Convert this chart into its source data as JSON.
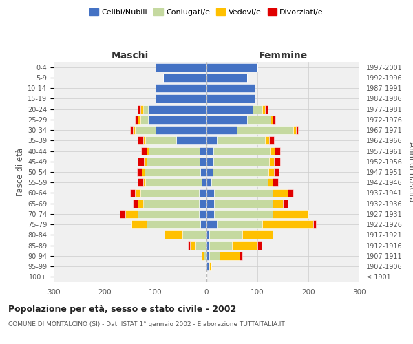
{
  "age_groups": [
    "100+",
    "95-99",
    "90-94",
    "85-89",
    "80-84",
    "75-79",
    "70-74",
    "65-69",
    "60-64",
    "55-59",
    "50-54",
    "45-49",
    "40-44",
    "35-39",
    "30-34",
    "25-29",
    "20-24",
    "15-19",
    "10-14",
    "5-9",
    "0-4"
  ],
  "birth_years": [
    "≤ 1901",
    "1902-1906",
    "1907-1911",
    "1912-1916",
    "1917-1921",
    "1922-1926",
    "1927-1931",
    "1932-1936",
    "1937-1941",
    "1942-1946",
    "1947-1951",
    "1952-1956",
    "1957-1961",
    "1962-1966",
    "1967-1971",
    "1972-1976",
    "1977-1981",
    "1982-1986",
    "1987-1991",
    "1992-1996",
    "1997-2001"
  ],
  "maschi_celibi": [
    0,
    0,
    0,
    2,
    2,
    12,
    15,
    15,
    15,
    10,
    12,
    13,
    13,
    60,
    100,
    115,
    115,
    100,
    100,
    85,
    100
  ],
  "maschi_coniugati": [
    0,
    0,
    5,
    20,
    45,
    105,
    120,
    110,
    115,
    110,
    110,
    105,
    100,
    60,
    40,
    15,
    10,
    0,
    0,
    0,
    0
  ],
  "maschi_vedovi": [
    0,
    0,
    5,
    10,
    35,
    30,
    25,
    10,
    10,
    5,
    5,
    5,
    5,
    5,
    5,
    5,
    5,
    0,
    0,
    0,
    0
  ],
  "maschi_divorziati": [
    0,
    0,
    0,
    5,
    0,
    0,
    10,
    10,
    10,
    10,
    10,
    12,
    10,
    10,
    5,
    5,
    5,
    0,
    0,
    0,
    0
  ],
  "femmine_celibi": [
    0,
    5,
    5,
    5,
    5,
    20,
    15,
    15,
    15,
    10,
    12,
    13,
    14,
    20,
    60,
    80,
    90,
    95,
    95,
    80,
    100
  ],
  "femmine_coniugati": [
    0,
    0,
    20,
    45,
    65,
    90,
    115,
    115,
    115,
    110,
    110,
    110,
    110,
    95,
    110,
    45,
    20,
    0,
    0,
    0,
    0
  ],
  "femmine_vedovi": [
    0,
    5,
    40,
    50,
    60,
    100,
    70,
    20,
    30,
    10,
    10,
    10,
    10,
    8,
    5,
    5,
    5,
    0,
    0,
    0,
    0
  ],
  "femmine_divorziati": [
    0,
    0,
    5,
    8,
    0,
    5,
    0,
    10,
    10,
    10,
    10,
    12,
    10,
    10,
    5,
    5,
    5,
    0,
    0,
    0,
    0
  ],
  "color_celibi": "#4472c4",
  "color_coniugati": "#c5d9a0",
  "color_vedovi": "#ffc000",
  "color_divorziati": "#e00000",
  "title": "Popolazione per età, sesso e stato civile - 2002",
  "subtitle": "COMUNE DI MONTALCINO (SI) - Dati ISTAT 1° gennaio 2002 - Elaborazione TUTTAITALIA.IT",
  "ylabel_left": "Fasce di età",
  "ylabel_right": "Anni di nascita",
  "xlabel_left": "Maschi",
  "xlabel_right": "Femmine",
  "xlim": 300,
  "bg_color": "#f0f0f0",
  "grid_color": "#cccccc"
}
